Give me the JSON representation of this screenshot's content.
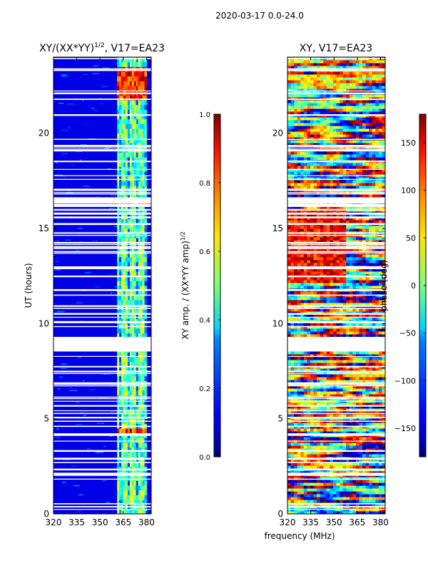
{
  "figure": {
    "suptitle": "2020-03-17 0.0-24.0",
    "shared_xlabel": "frequency (MHz)"
  },
  "chart_data": [
    {
      "type": "heatmap",
      "title": "XY/(XX*YY)^1/2, V17=EA23",
      "title_main": "XY/(XX*YY)",
      "title_exp": "1/2",
      "title_suffix": ", V17=EA23",
      "xlabel": "frequency (MHz)",
      "ylabel": "UT (hours)",
      "xlim": [
        320,
        383
      ],
      "ylim": [
        0,
        24
      ],
      "xticks": [
        320,
        335,
        350,
        365,
        380
      ],
      "yticks": [
        0,
        5,
        10,
        15,
        20
      ],
      "colormap": "jet",
      "colorbar": {
        "label": "XY amp. / (XX*YY amp)^1/2",
        "label_main": "XY amp. / (XX*YY amp)",
        "label_exp": "1/2",
        "vmin": 0.0,
        "vmax": 1.0,
        "ticks": [
          "0.0",
          "0.2",
          "0.4",
          "0.6",
          "0.8",
          "1.0"
        ]
      },
      "high_amp_band_mhz": [
        361,
        380
      ],
      "flagged_ut_ranges": [
        [
          8.6,
          9.1
        ]
      ]
    },
    {
      "type": "heatmap",
      "title": "XY, V17=EA23",
      "xlabel": "frequency (MHz)",
      "ylabel": "",
      "xlim": [
        320,
        383
      ],
      "ylim": [
        0,
        24
      ],
      "xticks": [
        320,
        335,
        350,
        365,
        380
      ],
      "yticks": [
        0,
        5,
        10,
        15,
        20
      ],
      "colormap": "jet",
      "colorbar": {
        "label": "phase (deg)",
        "vmin": -180,
        "vmax": 180,
        "ticks": [
          "−150",
          "−100",
          "−50",
          "0",
          "50",
          "100",
          "150"
        ]
      },
      "flagged_ut_ranges": [
        [
          8.6,
          9.1
        ]
      ]
    }
  ]
}
